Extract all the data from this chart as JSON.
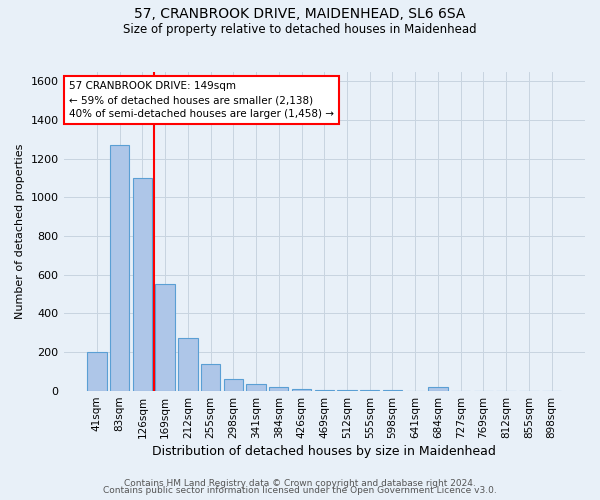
{
  "title": "57, CRANBROOK DRIVE, MAIDENHEAD, SL6 6SA",
  "subtitle": "Size of property relative to detached houses in Maidenhead",
  "xlabel": "Distribution of detached houses by size in Maidenhead",
  "ylabel": "Number of detached properties",
  "footnote1": "Contains HM Land Registry data © Crown copyright and database right 2024.",
  "footnote2": "Contains public sector information licensed under the Open Government Licence v3.0.",
  "bar_labels": [
    "41sqm",
    "83sqm",
    "126sqm",
    "169sqm",
    "212sqm",
    "255sqm",
    "298sqm",
    "341sqm",
    "384sqm",
    "426sqm",
    "469sqm",
    "512sqm",
    "555sqm",
    "598sqm",
    "641sqm",
    "684sqm",
    "727sqm",
    "769sqm",
    "812sqm",
    "855sqm",
    "898sqm"
  ],
  "bar_values": [
    197,
    1270,
    1098,
    553,
    270,
    135,
    62,
    35,
    18,
    10,
    5,
    5,
    3,
    5,
    0,
    18,
    0,
    0,
    0,
    0,
    0
  ],
  "bar_color": "#aec6e8",
  "bar_edge_color": "#5a9fd4",
  "background_color": "#e8f0f8",
  "grid_color": "#c8d4e0",
  "red_line_x": 2.5,
  "annotation_text": "57 CRANBROOK DRIVE: 149sqm\n← 59% of detached houses are smaller (2,138)\n40% of semi-detached houses are larger (1,458) →",
  "annotation_box_color": "white",
  "annotation_box_edge_color": "red",
  "ylim": [
    0,
    1650
  ],
  "yticks": [
    0,
    200,
    400,
    600,
    800,
    1000,
    1200,
    1400,
    1600
  ]
}
